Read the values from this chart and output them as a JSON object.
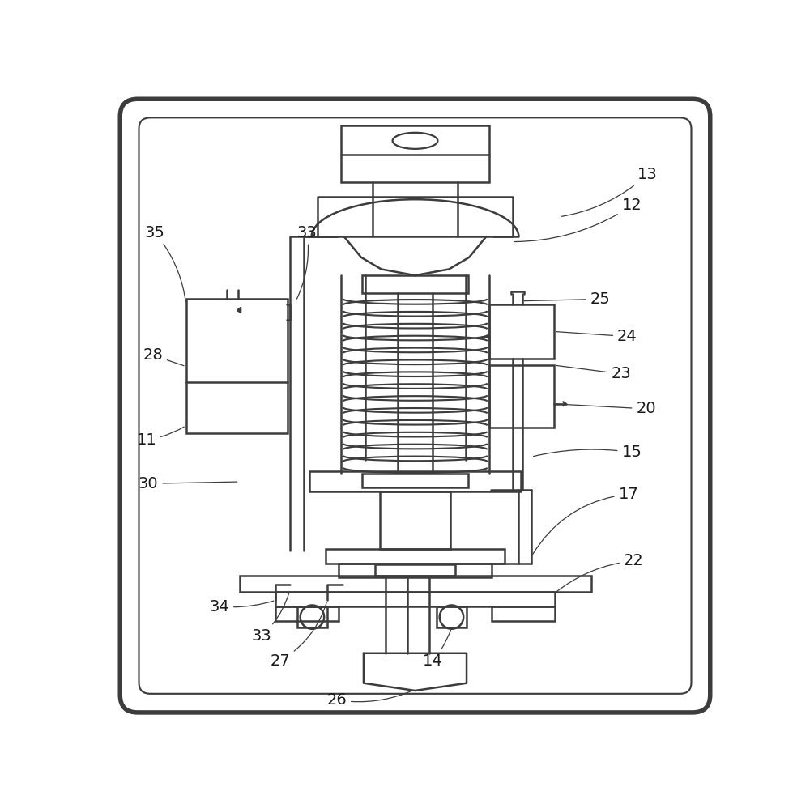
{
  "background_color": "#ffffff",
  "line_color": "#3c3c3c",
  "line_width": 1.8,
  "fig_width": 10.0,
  "fig_height": 9.93
}
